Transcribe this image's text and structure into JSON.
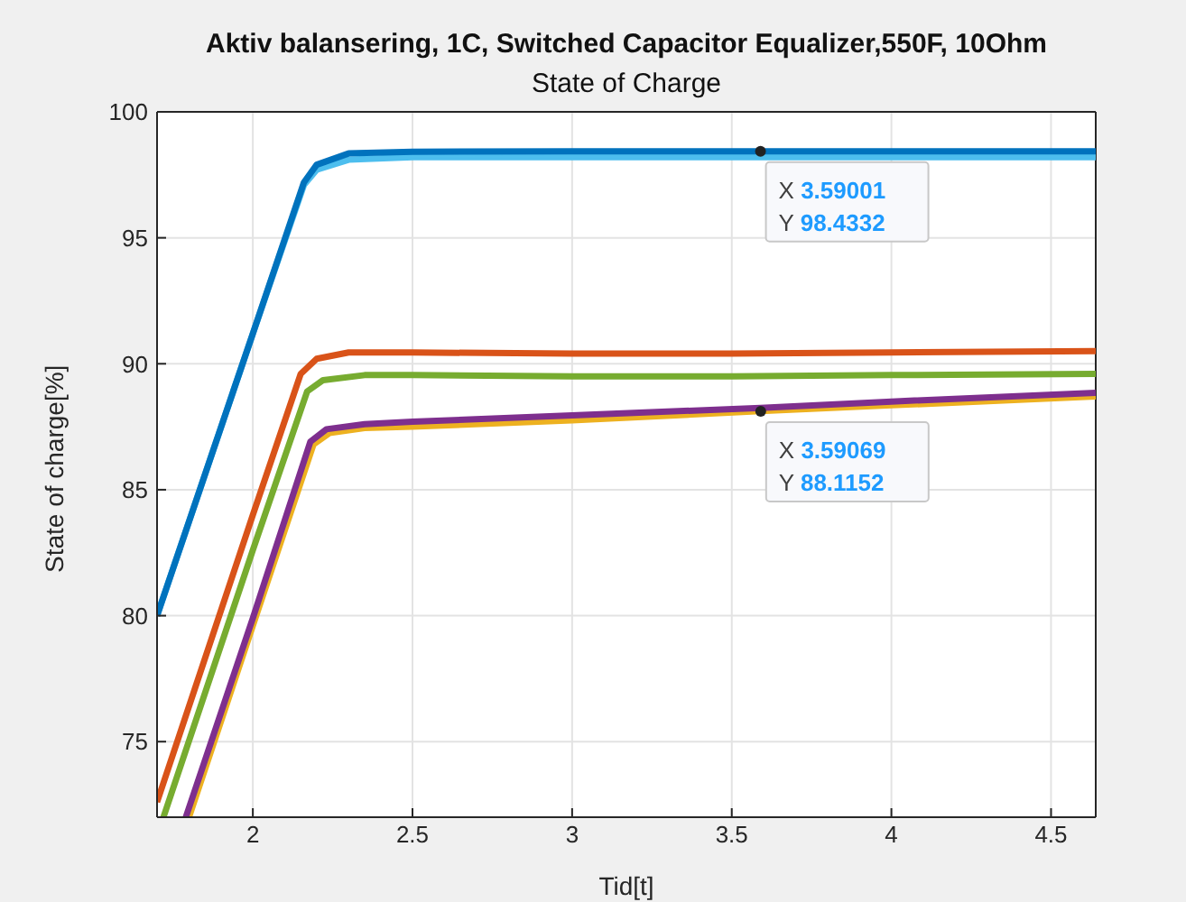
{
  "chart_data": {
    "type": "line",
    "title": "Aktiv balansering, 1C, Switched Capacitor Equalizer,550F, 10Ohm",
    "subtitle": "State of Charge",
    "xlabel": "Tid[t]",
    "ylabel": "State of charge[%]",
    "xlim": [
      1.7,
      4.64
    ],
    "xticks": [
      2,
      2.5,
      3,
      3.5,
      4,
      4.5
    ],
    "ylim": [
      72,
      100
    ],
    "yticks": [
      75,
      80,
      85,
      90,
      95,
      100
    ],
    "grid": true,
    "legend": false,
    "marker": "none",
    "line_style": "solid",
    "series": [
      {
        "color": "#4dbeee",
        "x": [
          1.7,
          2.0,
          2.16,
          2.2,
          2.3,
          2.5,
          3,
          3.5,
          4,
          4.64
        ],
        "values": [
          80,
          91.2,
          97.1,
          97.7,
          98.1,
          98.2,
          98.2,
          98.2,
          98.2,
          98.2
        ]
      },
      {
        "color": "#0072bd",
        "x": [
          1.7,
          2.0,
          2.16,
          2.2,
          2.3,
          2.5,
          3,
          3.59,
          4,
          4.64
        ],
        "values": [
          80,
          91.2,
          97.2,
          97.9,
          98.35,
          98.42,
          98.43,
          98.43,
          98.43,
          98.43
        ]
      },
      {
        "color": "#d95319",
        "x": [
          1.7,
          2.0,
          2.15,
          2.2,
          2.3,
          2.5,
          3,
          3.5,
          4,
          4.64
        ],
        "values": [
          72.6,
          84,
          89.6,
          90.2,
          90.45,
          90.45,
          90.4,
          90.4,
          90.45,
          90.5
        ]
      },
      {
        "color": "#77ac30",
        "x": [
          1.72,
          2.0,
          2.17,
          2.22,
          2.35,
          2.5,
          3,
          3.5,
          4,
          4.64
        ],
        "values": [
          72,
          82.6,
          88.9,
          89.35,
          89.55,
          89.55,
          89.5,
          89.5,
          89.55,
          89.6
        ]
      },
      {
        "color": "#edb120",
        "x": [
          1.8,
          2.0,
          2.19,
          2.24,
          2.35,
          2.5,
          3,
          3.59,
          4,
          4.64
        ],
        "values": [
          72,
          79.6,
          86.8,
          87.25,
          87.45,
          87.5,
          87.75,
          88.12,
          88.35,
          88.7
        ]
      },
      {
        "color": "#7e2f8e",
        "x": [
          1.79,
          2.0,
          2.18,
          2.23,
          2.35,
          2.5,
          3,
          3.59,
          4,
          4.64
        ],
        "values": [
          72,
          79.9,
          86.9,
          87.4,
          87.6,
          87.7,
          87.95,
          88.25,
          88.5,
          88.85
        ]
      }
    ],
    "annotations": [
      {
        "text": "X 3.59001\nY 98.4332",
        "x": 3.59001,
        "y": 98.4332
      },
      {
        "text": "X 3.59069\nY 88.1152",
        "x": 3.59069,
        "y": 88.1152
      }
    ]
  }
}
